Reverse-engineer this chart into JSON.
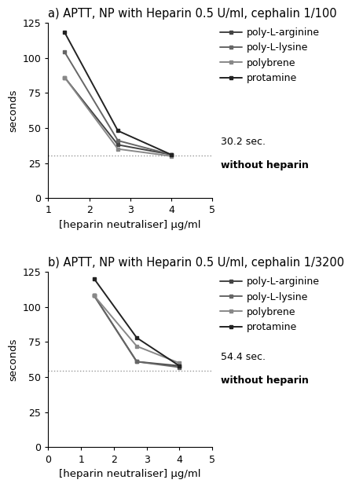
{
  "panel_a": {
    "title": "a) APTT, NP with Heparin 0.5 U/ml, cephalin 1/100",
    "xlabel": "[heparin neutraliser] μg/ml",
    "ylabel": "seconds",
    "xlim": [
      1,
      5
    ],
    "ylim": [
      0,
      125
    ],
    "xticks": [
      1,
      2,
      3,
      4,
      5
    ],
    "yticks": [
      0,
      25,
      50,
      75,
      100,
      125
    ],
    "hline": 30.2,
    "hline_label_line1": "30.2 sec.",
    "hline_label_line2": "without heparin",
    "series": {
      "poly-L-arginine": {
        "x": [
          1.4,
          2.7,
          4.0
        ],
        "y": [
          86,
          38,
          31
        ]
      },
      "poly-L-lysine": {
        "x": [
          1.4,
          2.7,
          4.0
        ],
        "y": [
          104,
          41,
          31
        ]
      },
      "polybrene": {
        "x": [
          1.4,
          2.7,
          4.0
        ],
        "y": [
          86,
          35,
          30
        ]
      },
      "protamine": {
        "x": [
          1.4,
          2.7,
          4.0
        ],
        "y": [
          118,
          48,
          31
        ]
      }
    }
  },
  "panel_b": {
    "title": "b) APTT, NP with Heparin 0.5 U/ml, cephalin 1/3200",
    "xlabel": "[heparin neutraliser] μg/ml",
    "ylabel": "seconds",
    "xlim": [
      0,
      5
    ],
    "ylim": [
      0,
      125
    ],
    "xticks": [
      0,
      1,
      2,
      3,
      4,
      5
    ],
    "yticks": [
      0,
      25,
      50,
      75,
      100,
      125
    ],
    "hline": 54.4,
    "hline_label_line1": "54.4 sec.",
    "hline_label_line2": "without heparin",
    "series": {
      "poly-L-arginine": {
        "x": [
          1.4,
          2.7,
          4.0
        ],
        "y": [
          108,
          61,
          58
        ]
      },
      "poly-L-lysine": {
        "x": [
          1.4,
          2.7,
          4.0
        ],
        "y": [
          108,
          61,
          57
        ]
      },
      "polybrene": {
        "x": [
          1.4,
          2.7,
          4.0
        ],
        "y": [
          108,
          72,
          60
        ]
      },
      "protamine": {
        "x": [
          1.4,
          2.7,
          4.0
        ],
        "y": [
          120,
          78,
          58
        ]
      }
    }
  },
  "legend_labels": [
    "poly-L-arginine",
    "poly-L-lysine",
    "polybrene",
    "protamine"
  ],
  "line_colors": [
    "#444444",
    "#666666",
    "#888888",
    "#222222"
  ],
  "linewidth": 1.4,
  "markersize": 4,
  "background_color": "#ffffff",
  "hline_color": "#999999",
  "title_fontsize": 10.5,
  "axis_label_fontsize": 9.5,
  "legend_fontsize": 9,
  "tick_fontsize": 9,
  "annotation_fontsize": 9
}
